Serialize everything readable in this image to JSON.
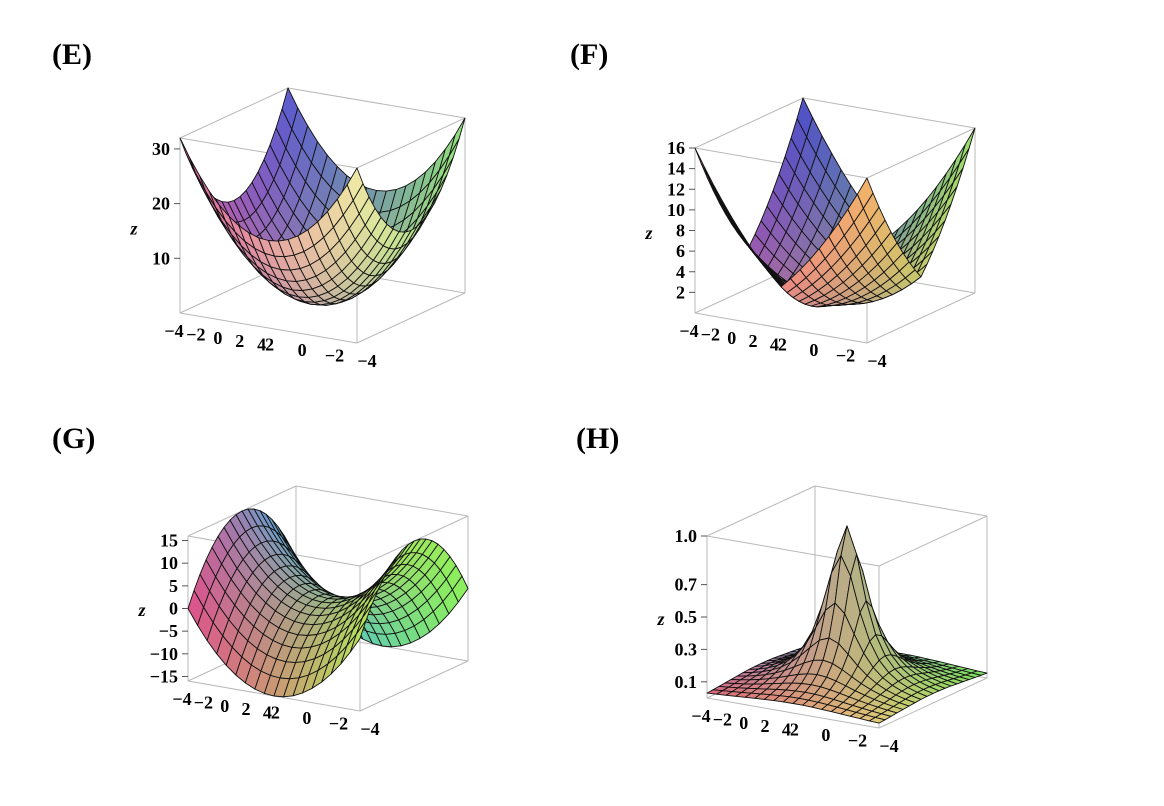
{
  "chart_data": [
    {
      "type": "surface3d",
      "panel_label": "(E)",
      "function": "x^2 + y^2",
      "x_range": [
        -4,
        4
      ],
      "y_range": [
        -4,
        4
      ],
      "zlim": [
        0,
        32
      ],
      "zlabel": "z",
      "z_ticks": [
        "10",
        "20",
        "30"
      ],
      "z_tick_values": [
        10,
        20,
        30
      ],
      "x_ticks": [
        "2",
        "0",
        "−2",
        "−4"
      ],
      "x_tick_values": [
        2,
        0,
        -2,
        -4
      ],
      "y_ticks": [
        "−4",
        "−2",
        "0",
        "2",
        "4"
      ],
      "y_tick_values": [
        -4,
        -2,
        0,
        2,
        4
      ],
      "colors": [
        "#e25c9e",
        "#f0eaa5",
        "#5a59d0",
        "#8fe07a"
      ]
    },
    {
      "type": "surface3d",
      "panel_label": "(F)",
      "function": "(|x| + |y|)^2 / 4 (pyramid-like, corners reach 16)",
      "x_range": [
        -4,
        4
      ],
      "y_range": [
        -4,
        4
      ],
      "zlim": [
        0,
        16
      ],
      "zlabel": "z",
      "z_ticks": [
        "2",
        "4",
        "6",
        "8",
        "10",
        "12",
        "14",
        "16"
      ],
      "z_tick_values": [
        2,
        4,
        6,
        8,
        10,
        12,
        14,
        16
      ],
      "x_ticks": [
        "2",
        "0",
        "−2",
        "−4"
      ],
      "x_tick_values": [
        2,
        0,
        -2,
        -4
      ],
      "y_ticks": [
        "−4",
        "−2",
        "0",
        "2",
        "4"
      ],
      "y_tick_values": [
        -4,
        -2,
        0,
        2,
        4
      ],
      "colors": [
        "#e8609a",
        "#f3b26a",
        "#4b4fc9",
        "#9ae06c"
      ]
    },
    {
      "type": "surface3d",
      "panel_label": "(G)",
      "function": "x^2 - y^2",
      "x_range": [
        -4,
        4
      ],
      "y_range": [
        -4,
        4
      ],
      "zlim": [
        -16,
        16
      ],
      "zlabel": "z",
      "z_ticks": [
        "15",
        "10",
        "5",
        "0",
        "−5",
        "−10",
        "−15"
      ],
      "z_tick_values": [
        15,
        10,
        5,
        0,
        -5,
        -10,
        -15
      ],
      "x_ticks": [
        "2",
        "0",
        "−2",
        "−4"
      ],
      "x_tick_values": [
        2,
        0,
        -2,
        -4
      ],
      "y_ticks": [
        "−4",
        "−2",
        "0",
        "2",
        "4"
      ],
      "y_tick_values": [
        -4,
        -2,
        0,
        2,
        4
      ],
      "colors": [
        "#e0508a",
        "#b7e35a",
        "#3fb7e8",
        "#8cf05a"
      ]
    },
    {
      "type": "surface3d",
      "panel_label": "(H)",
      "function": "1 / (1 + x^2 + y^2)",
      "x_range": [
        -4,
        4
      ],
      "y_range": [
        -4,
        4
      ],
      "zlim": [
        0,
        1.0
      ],
      "zlabel": "z",
      "z_ticks": [
        "1.0",
        "0.7",
        "0.5",
        "0.3",
        "0.1"
      ],
      "z_tick_values": [
        1.0,
        0.7,
        0.5,
        0.3,
        0.1
      ],
      "x_ticks": [
        "2",
        "0",
        "−2",
        "−4"
      ],
      "x_tick_values": [
        2,
        0,
        -2,
        -4
      ],
      "y_ticks": [
        "−4",
        "−2",
        "0",
        "2",
        "4"
      ],
      "y_tick_values": [
        -4,
        -2,
        0,
        2,
        4
      ],
      "colors": [
        "#d9677a",
        "#e3c878",
        "#9aa5e0",
        "#78e05a"
      ]
    }
  ]
}
